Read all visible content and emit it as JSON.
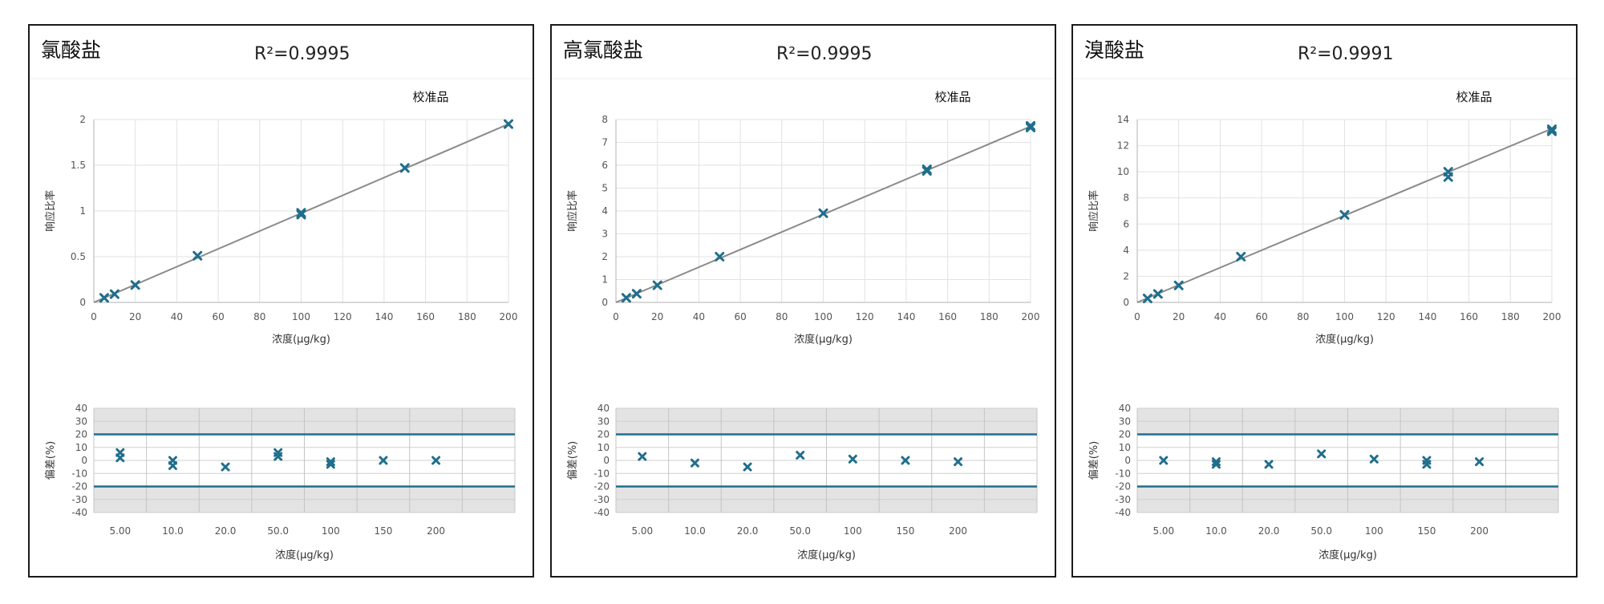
{
  "chart_data": [
    {
      "type": "scatter",
      "compound": "氯酸盐",
      "r2": "R²=0.9995",
      "legend": "校准品",
      "calibration": {
        "xlabel": "浓度(µg/kg)",
        "ylabel": "响应比率",
        "xlim": [
          0,
          200
        ],
        "ylim": [
          0,
          2
        ],
        "xticks": [
          "0",
          "20",
          "40",
          "60",
          "80",
          "100",
          "120",
          "140",
          "160",
          "180",
          "200"
        ],
        "yticks": [
          "0",
          "0.5",
          "1",
          "1.5",
          "2"
        ],
        "fit_line": [
          [
            0,
            0
          ],
          [
            200,
            1.95
          ]
        ],
        "points": [
          [
            5,
            0.05
          ],
          [
            10,
            0.09
          ],
          [
            20,
            0.19
          ],
          [
            50,
            0.51
          ],
          [
            100,
            0.96
          ],
          [
            100,
            0.98
          ],
          [
            150,
            1.47
          ],
          [
            200,
            1.95
          ]
        ]
      },
      "deviation": {
        "xlabel": "浓度(µg/kg)",
        "ylabel": "偏差(%)",
        "ylim": [
          -40,
          40
        ],
        "yticks": [
          "40",
          "30",
          "20",
          "10",
          "0",
          "-10",
          "-20",
          "-30",
          "-40"
        ],
        "bounds": [
          20,
          -20
        ],
        "categories": [
          "5.00",
          "10.0",
          "20.0",
          "50.0",
          "100",
          "150",
          "200"
        ],
        "points": [
          [
            0,
            6
          ],
          [
            0,
            2
          ],
          [
            1,
            -4
          ],
          [
            1,
            0
          ],
          [
            2,
            -5
          ],
          [
            3,
            3
          ],
          [
            3,
            6
          ],
          [
            4,
            -3
          ],
          [
            4,
            -1
          ],
          [
            5,
            0
          ],
          [
            6,
            0
          ]
        ]
      }
    },
    {
      "type": "scatter",
      "compound": "高氯酸盐",
      "r2": "R²=0.9995",
      "legend": "校准品",
      "calibration": {
        "xlabel": "浓度(µg/kg)",
        "ylabel": "响应比率",
        "xlim": [
          0,
          200
        ],
        "ylim": [
          0,
          8
        ],
        "xticks": [
          "0",
          "20",
          "40",
          "60",
          "80",
          "100",
          "120",
          "140",
          "160",
          "180",
          "200"
        ],
        "yticks": [
          "0",
          "1",
          "2",
          "3",
          "4",
          "5",
          "6",
          "7",
          "8"
        ],
        "fit_line": [
          [
            0,
            0
          ],
          [
            200,
            7.7
          ]
        ],
        "points": [
          [
            5,
            0.2
          ],
          [
            10,
            0.38
          ],
          [
            20,
            0.75
          ],
          [
            50,
            2.0
          ],
          [
            100,
            3.9
          ],
          [
            150,
            5.75
          ],
          [
            150,
            5.82
          ],
          [
            200,
            7.65
          ],
          [
            200,
            7.72
          ]
        ]
      },
      "deviation": {
        "xlabel": "浓度(µg/kg)",
        "ylabel": "偏差(%)",
        "ylim": [
          -40,
          40
        ],
        "yticks": [
          "40",
          "30",
          "20",
          "10",
          "0",
          "-10",
          "-20",
          "-30",
          "-40"
        ],
        "bounds": [
          20,
          -20
        ],
        "categories": [
          "5.00",
          "10.0",
          "20.0",
          "50.0",
          "100",
          "150",
          "200"
        ],
        "points": [
          [
            0,
            3
          ],
          [
            1,
            -2
          ],
          [
            2,
            -5
          ],
          [
            3,
            4
          ],
          [
            4,
            1
          ],
          [
            5,
            0
          ],
          [
            6,
            -1
          ]
        ]
      }
    },
    {
      "type": "scatter",
      "compound": "溴酸盐",
      "r2": "R²=0.9991",
      "legend": "校准品",
      "calibration": {
        "xlabel": "浓度(µg/kg)",
        "ylabel": "响应比率",
        "xlim": [
          0,
          200
        ],
        "ylim": [
          0,
          14
        ],
        "xticks": [
          "0",
          "20",
          "40",
          "60",
          "80",
          "100",
          "120",
          "140",
          "160",
          "180",
          "200"
        ],
        "yticks": [
          "0",
          "2",
          "4",
          "6",
          "8",
          "10",
          "12",
          "14"
        ],
        "fit_line": [
          [
            0,
            0
          ],
          [
            200,
            13.3
          ]
        ],
        "points": [
          [
            5,
            0.3
          ],
          [
            10,
            0.65
          ],
          [
            20,
            1.3
          ],
          [
            50,
            3.5
          ],
          [
            100,
            6.7
          ],
          [
            150,
            9.6
          ],
          [
            150,
            10.0
          ],
          [
            200,
            13.1
          ],
          [
            200,
            13.25
          ]
        ]
      },
      "deviation": {
        "xlabel": "浓度(µg/kg)",
        "ylabel": "偏差(%)",
        "ylim": [
          -40,
          40
        ],
        "yticks": [
          "40",
          "30",
          "20",
          "10",
          "0",
          "-10",
          "-20",
          "-30",
          "-40"
        ],
        "bounds": [
          20,
          -20
        ],
        "categories": [
          "5.00",
          "10.0",
          "20.0",
          "50.0",
          "100",
          "150",
          "200"
        ],
        "points": [
          [
            0,
            0
          ],
          [
            1,
            -1
          ],
          [
            1,
            -3
          ],
          [
            2,
            -3
          ],
          [
            3,
            5
          ],
          [
            4,
            1
          ],
          [
            5,
            -3
          ],
          [
            5,
            0
          ],
          [
            6,
            -1
          ]
        ]
      }
    }
  ]
}
